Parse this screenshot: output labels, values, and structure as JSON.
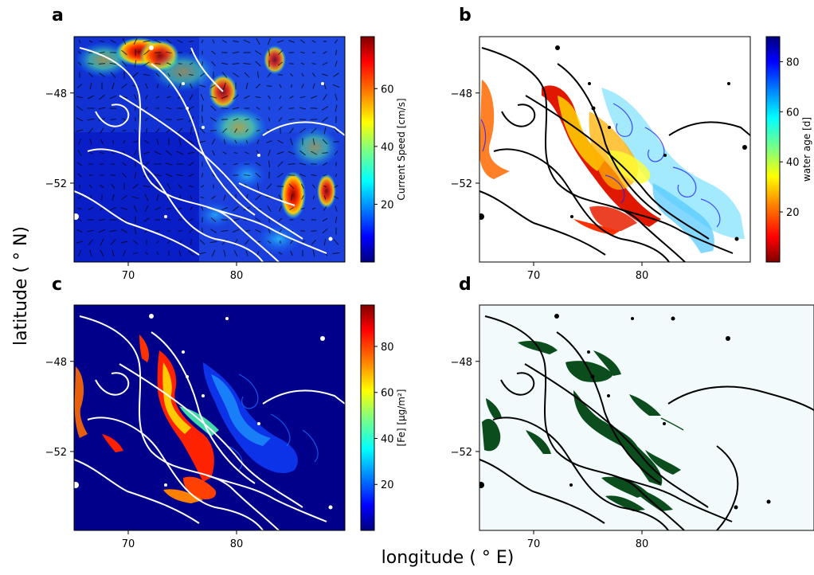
{
  "figure": {
    "xlabel": "longitude ($^\\circ E$)",
    "ylabel": "latitude ($^\\circ N$)",
    "xlabel_display": "longitude ( ° E)",
    "ylabel_display": "latitude ( ° N)"
  },
  "chart_data": [
    {
      "panel": "a",
      "type": "heatmap",
      "x_ticks": [
        70,
        80
      ],
      "y_ticks": [
        -48,
        -52
      ],
      "x_tick_labels": [
        "70",
        "80"
      ],
      "y_tick_labels": [
        "−48",
        "−52"
      ],
      "xlim": [
        65,
        90
      ],
      "ylim": [
        -55.5,
        -45.5
      ],
      "colorbar": {
        "label": "Current Speed",
        "unit": "[cm/s]",
        "ticks": [
          20,
          40,
          60
        ],
        "tick_labels": [
          "20",
          "40",
          "60"
        ],
        "range": [
          0,
          78
        ],
        "colormap": "jet",
        "colors": [
          "#00007f",
          "#0000ff",
          "#007fff",
          "#00ffff",
          "#7fff7f",
          "#ffff00",
          "#ff7f00",
          "#ff0000",
          "#7f0000"
        ]
      },
      "bathymetry_contour_color": "#ffffff",
      "overlay": "current velocity arrows",
      "background_color": "#0a1ec8"
    },
    {
      "panel": "b",
      "type": "heatmap",
      "x_ticks": [
        70,
        80
      ],
      "y_ticks": [
        -48,
        -52
      ],
      "x_tick_labels": [
        "70",
        "80"
      ],
      "y_tick_labels": [
        "−48",
        "−52"
      ],
      "xlim": [
        65,
        90
      ],
      "ylim": [
        -55.5,
        -45.5
      ],
      "colorbar": {
        "label": "water age",
        "unit": "[d]",
        "ticks": [
          20,
          40,
          60,
          80
        ],
        "tick_labels": [
          "20",
          "40",
          "60",
          "80"
        ],
        "range": [
          0,
          90
        ],
        "colormap": "jet_r",
        "colors": [
          "#7f0000",
          "#ff0000",
          "#ff7f00",
          "#ffff00",
          "#7fff7f",
          "#00ffff",
          "#007fff",
          "#0000ff",
          "#00007f"
        ]
      },
      "bathymetry_contour_color": "#000000",
      "background_color": "#ffffff"
    },
    {
      "panel": "c",
      "type": "heatmap",
      "x_ticks": [
        70,
        80
      ],
      "y_ticks": [
        -48,
        -52
      ],
      "x_tick_labels": [
        "70",
        "80"
      ],
      "y_tick_labels": [
        "−48",
        "−52"
      ],
      "xlim": [
        65,
        90
      ],
      "ylim": [
        -55.5,
        -45.5
      ],
      "colorbar": {
        "label": "[Fe]",
        "unit": "[μg/m²]",
        "ticks": [
          20,
          40,
          60,
          80
        ],
        "tick_labels": [
          "20",
          "40",
          "60",
          "80"
        ],
        "range": [
          0,
          98
        ],
        "colormap": "jet",
        "colors": [
          "#00007f",
          "#0000ff",
          "#007fff",
          "#00ffff",
          "#7fff7f",
          "#ffff00",
          "#ff7f00",
          "#ff0000",
          "#7f0000"
        ]
      },
      "bathymetry_contour_color": "#ffffff",
      "background_color": "#00008b"
    },
    {
      "panel": "d",
      "type": "heatmap",
      "x_ticks": [
        70,
        80
      ],
      "y_ticks": [
        -48,
        -52
      ],
      "x_tick_labels": [
        "70",
        "80"
      ],
      "y_tick_labels": [
        "−48",
        "−52"
      ],
      "xlim": [
        65,
        90
      ],
      "ylim": [
        -55.5,
        -45.5
      ],
      "bathymetry_contour_color": "#000000",
      "fill_color": "#0b4d1c",
      "background_color": "#f2fafc"
    }
  ],
  "panels": [
    {
      "letter": "a"
    },
    {
      "letter": "b"
    },
    {
      "letter": "c"
    },
    {
      "letter": "d"
    }
  ]
}
